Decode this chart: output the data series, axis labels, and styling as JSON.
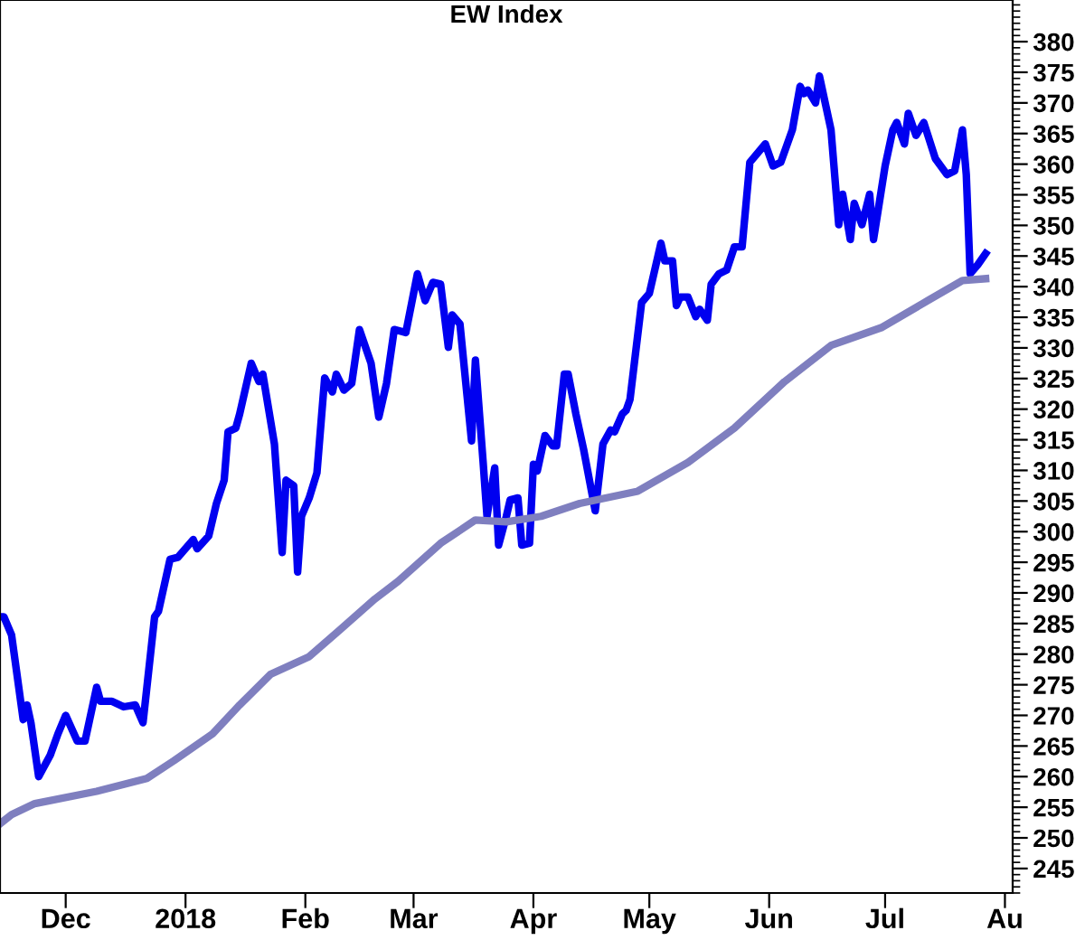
{
  "chart_data": {
    "type": "line",
    "title": "EW Index",
    "xlim": [
      "2017-11-14",
      "2018-08-03"
    ],
    "xticks": [
      {
        "value": "2017-12-01",
        "label": "Dec"
      },
      {
        "value": "2018-01-01",
        "label": "2018"
      },
      {
        "value": "2018-02-01",
        "label": "Feb"
      },
      {
        "value": "2018-03-01",
        "label": "Mar"
      },
      {
        "value": "2018-04-01",
        "label": "Apr"
      },
      {
        "value": "2018-05-01",
        "label": "May"
      },
      {
        "value": "2018-06-01",
        "label": "Jun"
      },
      {
        "value": "2018-07-01",
        "label": "Jul"
      },
      {
        "value": "2018-08-01",
        "label": "Au"
      }
    ],
    "ylim": [
      241,
      386.8
    ],
    "yticks": [
      245,
      250,
      255,
      260,
      265,
      270,
      275,
      280,
      285,
      290,
      295,
      300,
      305,
      310,
      315,
      320,
      325,
      330,
      335,
      340,
      345,
      350,
      355,
      360,
      365,
      370,
      375,
      380
    ],
    "grid": false,
    "marker": "none",
    "line_style": "solid",
    "series": [
      {
        "color": "#0000f0",
        "x": [
          "2017-11-14",
          "2017-11-15",
          "2017-11-17",
          "2017-11-20",
          "2017-11-21",
          "2017-11-22",
          "2017-11-24",
          "2017-11-27",
          "2017-11-29",
          "2017-12-01",
          "2017-12-04",
          "2017-12-06",
          "2017-12-09",
          "2017-12-10",
          "2017-12-13",
          "2017-12-16",
          "2017-12-19",
          "2017-12-21",
          "2017-12-24",
          "2017-12-25",
          "2017-12-28",
          "2017-12-30",
          "2018-01-03",
          "2018-01-04",
          "2018-01-07",
          "2018-01-09",
          "2018-01-11",
          "2018-01-12",
          "2018-01-14",
          "2018-01-15",
          "2018-01-18",
          "2018-01-20",
          "2018-01-21",
          "2018-01-24",
          "2018-01-26",
          "2018-01-27",
          "2018-01-29",
          "2018-01-30",
          "2018-01-31",
          "2018-02-02",
          "2018-02-04",
          "2018-02-06",
          "2018-02-08",
          "2018-02-09",
          "2018-02-11",
          "2018-02-13",
          "2018-02-15",
          "2018-02-18",
          "2018-02-20",
          "2018-02-22",
          "2018-02-24",
          "2018-02-27",
          "2018-03-01",
          "2018-03-02",
          "2018-03-04",
          "2018-03-06",
          "2018-03-08",
          "2018-03-10",
          "2018-03-11",
          "2018-03-13",
          "2018-03-16",
          "2018-03-17",
          "2018-03-19",
          "2018-03-20",
          "2018-03-22",
          "2018-03-23",
          "2018-03-25",
          "2018-03-26",
          "2018-03-28",
          "2018-03-29",
          "2018-03-31",
          "2018-04-01",
          "2018-04-02",
          "2018-04-04",
          "2018-04-06",
          "2018-04-07",
          "2018-04-09",
          "2018-04-10",
          "2018-04-12",
          "2018-04-14",
          "2018-04-17",
          "2018-04-19",
          "2018-04-21",
          "2018-04-22",
          "2018-04-24",
          "2018-04-25",
          "2018-04-26",
          "2018-04-29",
          "2018-05-01",
          "2018-05-04",
          "2018-05-05",
          "2018-05-07",
          "2018-05-08",
          "2018-05-09",
          "2018-05-11",
          "2018-05-13",
          "2018-05-14",
          "2018-05-16",
          "2018-05-17",
          "2018-05-19",
          "2018-05-21",
          "2018-05-23",
          "2018-05-25",
          "2018-05-27",
          "2018-05-31",
          "2018-06-02",
          "2018-06-04",
          "2018-06-07",
          "2018-06-09",
          "2018-06-10",
          "2018-06-11",
          "2018-06-13",
          "2018-06-14",
          "2018-06-17",
          "2018-06-19",
          "2018-06-20",
          "2018-06-22",
          "2018-06-23",
          "2018-06-25",
          "2018-06-27",
          "2018-06-28",
          "2018-07-01",
          "2018-07-03",
          "2018-07-04",
          "2018-07-06",
          "2018-07-07",
          "2018-07-09",
          "2018-07-11",
          "2018-07-14",
          "2018-07-17",
          "2018-07-19",
          "2018-07-21",
          "2018-07-22",
          "2018-07-23",
          "2018-07-25",
          "2018-07-27"
        ],
        "values": [
          286.1,
          286.1,
          283.1,
          269.3,
          271.7,
          268.8,
          260.0,
          263.5,
          267.0,
          270.0,
          265.8,
          265.8,
          274.6,
          272.3,
          272.3,
          271.4,
          271.7,
          268.8,
          286.1,
          287.0,
          295.5,
          295.8,
          298.7,
          297.2,
          299.3,
          304.6,
          308.4,
          316.3,
          316.9,
          319.2,
          327.5,
          324.5,
          325.7,
          314.3,
          296.6,
          308.4,
          307.5,
          293.4,
          302.5,
          305.5,
          309.6,
          325.1,
          322.8,
          325.7,
          323.1,
          324.2,
          333.0,
          327.5,
          318.7,
          324.2,
          333.0,
          332.5,
          338.9,
          342.1,
          337.7,
          340.7,
          340.4,
          330.1,
          335.4,
          333.9,
          314.8,
          328.0,
          311.3,
          302.5,
          310.4,
          297.8,
          302.5,
          305.2,
          305.5,
          297.8,
          298.1,
          311.0,
          309.9,
          315.7,
          314.0,
          314.0,
          325.7,
          325.7,
          319.2,
          313.4,
          303.4,
          314.3,
          316.6,
          316.3,
          319.2,
          319.8,
          321.6,
          337.4,
          338.9,
          347.1,
          344.2,
          344.2,
          336.9,
          338.3,
          338.3,
          335.1,
          336.3,
          334.5,
          340.4,
          342.1,
          342.7,
          346.5,
          346.5,
          360.3,
          363.3,
          359.7,
          360.3,
          365.6,
          372.7,
          371.5,
          372.1,
          370.0,
          374.4,
          365.6,
          350.1,
          355.1,
          347.7,
          353.6,
          350.1,
          355.1,
          347.7,
          359.7,
          365.6,
          366.8,
          363.3,
          368.3,
          364.7,
          366.8,
          360.9,
          358.3,
          358.9,
          365.6,
          358.3,
          342.1,
          343.6,
          345.4
        ]
      },
      {
        "color": "#7f7fbf",
        "x": [
          "2017-11-14",
          "2017-11-17",
          "2017-11-23",
          "2017-12-09",
          "2017-12-22",
          "2017-12-29",
          "2018-01-08",
          "2018-01-15",
          "2018-01-23",
          "2018-02-02",
          "2018-02-10",
          "2018-02-19",
          "2018-02-25",
          "2018-03-08",
          "2018-03-17",
          "2018-03-25",
          "2018-04-03",
          "2018-04-13",
          "2018-04-28",
          "2018-05-11",
          "2018-05-23",
          "2018-06-05",
          "2018-06-17",
          "2018-06-30",
          "2018-07-12",
          "2018-07-21",
          "2018-07-27"
        ],
        "values": [
          252.3,
          253.8,
          255.6,
          257.6,
          259.7,
          262.6,
          267.0,
          271.7,
          276.7,
          279.6,
          284.0,
          289.0,
          291.9,
          298.1,
          301.9,
          301.6,
          302.5,
          304.6,
          306.6,
          311.3,
          316.9,
          324.5,
          330.4,
          333.3,
          337.7,
          341.0,
          341.3
        ]
      }
    ]
  }
}
